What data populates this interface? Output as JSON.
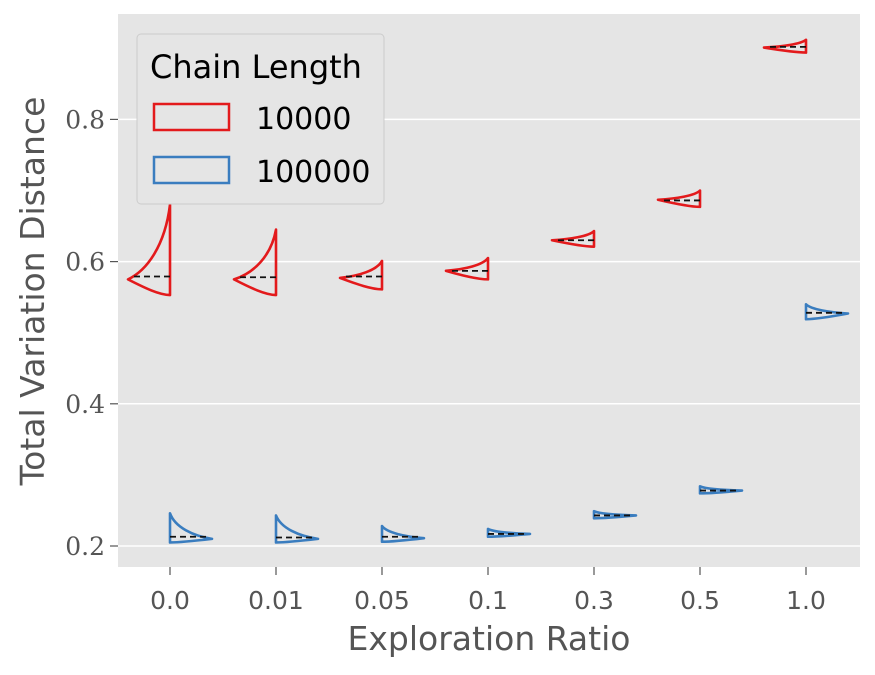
{
  "chart_data": {
    "type": "violin",
    "xlabel": "Exploration Ratio",
    "ylabel": "Total Variation Distance",
    "categories": [
      "0.0",
      "0.01",
      "0.05",
      "0.1",
      "0.3",
      "0.5",
      "1.0"
    ],
    "y_ticks": [
      {
        "value": 0.2,
        "label": "0.2"
      },
      {
        "value": 0.4,
        "label": "0.4"
      },
      {
        "value": 0.6,
        "label": "0.6"
      },
      {
        "value": 0.8,
        "label": "0.8"
      }
    ],
    "ylim": [
      0.17,
      0.93
    ],
    "grid": true,
    "split_violins": true,
    "legend": {
      "title": "Chain Length",
      "placement": "top-left",
      "entries": [
        {
          "label": "10000",
          "color": "#e31a1c"
        },
        {
          "label": "100000",
          "color": "#3a7dbf"
        }
      ]
    },
    "series": [
      {
        "name": "10000",
        "side": "left",
        "color": "#e31a1c",
        "median": [
          0.579,
          0.578,
          0.579,
          0.587,
          0.63,
          0.686,
          0.902
        ],
        "min": [
          0.553,
          0.553,
          0.561,
          0.575,
          0.621,
          0.677,
          0.894
        ],
        "max": [
          0.68,
          0.645,
          0.601,
          0.605,
          0.643,
          0.7,
          0.912
        ],
        "mode": [
          0.575,
          0.575,
          0.577,
          0.587,
          0.63,
          0.687,
          0.901
        ]
      },
      {
        "name": "100000",
        "side": "right",
        "color": "#3a7dbf",
        "median": [
          0.213,
          0.212,
          0.213,
          0.217,
          0.243,
          0.278,
          0.528
        ],
        "min": [
          0.205,
          0.205,
          0.206,
          0.213,
          0.239,
          0.274,
          0.519
        ],
        "max": [
          0.246,
          0.243,
          0.228,
          0.224,
          0.249,
          0.284,
          0.54
        ],
        "mode": [
          0.21,
          0.21,
          0.211,
          0.217,
          0.243,
          0.278,
          0.527
        ]
      }
    ]
  }
}
